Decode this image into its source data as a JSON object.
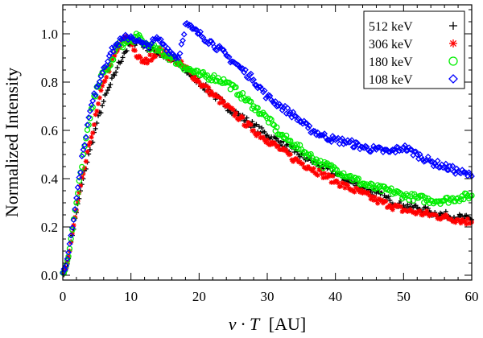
{
  "chart_data": {
    "type": "scatter",
    "title": "",
    "xlabel_italic": "v · T",
    "xlabel_unit": "[AU]",
    "ylabel": "Normalized Intensity",
    "xlim": [
      0,
      60
    ],
    "ylim": [
      -0.02,
      1.12
    ],
    "x_ticks": [
      0,
      10,
      20,
      30,
      40,
      50,
      60
    ],
    "x_tick_labels": [
      "0",
      "10",
      "20",
      "30",
      "40",
      "50",
      "60"
    ],
    "y_ticks": [
      0.0,
      0.2,
      0.4,
      0.6,
      0.8,
      1.0
    ],
    "y_tick_labels": [
      "0.0",
      "0.2",
      "0.4",
      "0.6",
      "0.8",
      "1.0"
    ],
    "legend_position": "top-right",
    "grid": false,
    "series": [
      {
        "name": "512 keV",
        "marker": "plus",
        "color": "#000000",
        "x": [
          0,
          0.5,
          1,
          2,
          3,
          4,
          5,
          6,
          7,
          8,
          9,
          10,
          11,
          12,
          14,
          16,
          18,
          20,
          22,
          24,
          26,
          28,
          30,
          32,
          34,
          36,
          38,
          40,
          42,
          44,
          46,
          48,
          50,
          52,
          54,
          56,
          58,
          60
        ],
        "y": [
          0.01,
          0.03,
          0.1,
          0.26,
          0.4,
          0.52,
          0.63,
          0.72,
          0.79,
          0.86,
          0.92,
          0.96,
          0.97,
          0.95,
          0.92,
          0.89,
          0.85,
          0.8,
          0.75,
          0.7,
          0.66,
          0.62,
          0.58,
          0.55,
          0.51,
          0.48,
          0.45,
          0.42,
          0.39,
          0.36,
          0.34,
          0.31,
          0.29,
          0.28,
          0.26,
          0.25,
          0.24,
          0.23
        ]
      },
      {
        "name": "306 keV",
        "marker": "asterisk",
        "color": "#ff0000",
        "x": [
          0,
          0.5,
          1,
          2,
          3,
          4,
          5,
          6,
          7,
          8,
          9,
          10,
          11,
          12,
          14,
          16,
          18,
          20,
          22,
          24,
          26,
          28,
          30,
          32,
          34,
          36,
          38,
          40,
          42,
          44,
          46,
          48,
          50,
          52,
          54,
          56,
          58,
          60
        ],
        "y": [
          0.01,
          0.03,
          0.1,
          0.27,
          0.42,
          0.55,
          0.68,
          0.8,
          0.87,
          0.93,
          0.98,
          0.97,
          0.9,
          0.88,
          0.93,
          0.9,
          0.86,
          0.8,
          0.75,
          0.7,
          0.65,
          0.6,
          0.56,
          0.52,
          0.48,
          0.45,
          0.42,
          0.39,
          0.36,
          0.34,
          0.31,
          0.29,
          0.27,
          0.26,
          0.25,
          0.24,
          0.23,
          0.22
        ]
      },
      {
        "name": "180 keV",
        "marker": "circle",
        "color": "#00ee00",
        "x": [
          0,
          0.5,
          1,
          2,
          3,
          4,
          5,
          6,
          7,
          8,
          9,
          10,
          11,
          12,
          14,
          16,
          18,
          20,
          22,
          24,
          26,
          28,
          30,
          32,
          34,
          36,
          38,
          40,
          42,
          44,
          46,
          48,
          50,
          52,
          54,
          56,
          58,
          60
        ],
        "y": [
          0.01,
          0.04,
          0.11,
          0.3,
          0.5,
          0.65,
          0.78,
          0.84,
          0.87,
          0.95,
          0.96,
          0.97,
          0.99,
          0.96,
          0.93,
          0.9,
          0.86,
          0.83,
          0.82,
          0.8,
          0.75,
          0.7,
          0.65,
          0.58,
          0.54,
          0.5,
          0.46,
          0.44,
          0.41,
          0.38,
          0.36,
          0.35,
          0.33,
          0.32,
          0.31,
          0.31,
          0.32,
          0.33
        ]
      },
      {
        "name": "108 keV",
        "marker": "diamond",
        "color": "#0000ff",
        "x": [
          0,
          0.5,
          1,
          2,
          3,
          4,
          5,
          6,
          7,
          8,
          9,
          10,
          11,
          12,
          13,
          14,
          15,
          16,
          17,
          18,
          19,
          20,
          22,
          24,
          26,
          28,
          30,
          32,
          34,
          36,
          38,
          40,
          42,
          44,
          46,
          48,
          50,
          52,
          54,
          56,
          58,
          60
        ],
        "y": [
          0.01,
          0.04,
          0.13,
          0.32,
          0.52,
          0.68,
          0.78,
          0.86,
          0.92,
          0.96,
          0.98,
          0.99,
          0.97,
          0.95,
          0.96,
          0.98,
          0.95,
          0.92,
          0.9,
          1.04,
          1.02,
          1.0,
          0.96,
          0.91,
          0.86,
          0.81,
          0.74,
          0.7,
          0.66,
          0.61,
          0.58,
          0.56,
          0.55,
          0.53,
          0.52,
          0.51,
          0.53,
          0.5,
          0.47,
          0.45,
          0.43,
          0.41
        ]
      }
    ]
  }
}
